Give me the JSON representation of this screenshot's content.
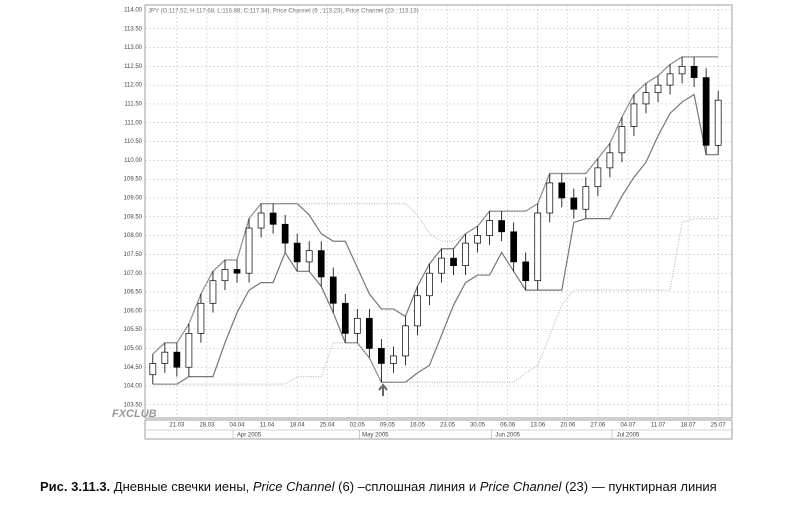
{
  "chart_data": {
    "type": "candlestick",
    "info": "JPY (O:117.52, H:117.68, L:116.88, C:117.34), Price Channel (6 ; 113.23), Price Channel (23 ; 113.13)",
    "x": [
      0,
      2,
      4,
      6,
      8,
      10,
      12,
      14,
      16,
      18,
      20,
      22,
      24,
      26,
      28,
      30,
      32,
      34,
      36,
      38,
      40,
      42,
      44,
      46,
      48,
      50,
      52,
      54,
      56,
      58,
      60,
      62,
      64,
      66,
      68,
      70,
      72,
      74,
      76,
      78,
      80,
      82,
      84,
      86,
      88,
      90,
      92,
      94
    ],
    "open": [
      104.3,
      104.6,
      104.9,
      104.5,
      105.4,
      106.2,
      106.8,
      107.1,
      107.0,
      108.2,
      108.6,
      108.3,
      107.8,
      107.3,
      107.6,
      106.9,
      106.2,
      105.4,
      105.8,
      105.0,
      104.6,
      104.8,
      105.6,
      106.4,
      107.0,
      107.4,
      107.2,
      107.8,
      108.0,
      108.4,
      108.1,
      107.3,
      106.8,
      108.6,
      109.4,
      109.0,
      108.7,
      109.3,
      109.8,
      110.2,
      110.9,
      111.5,
      111.8,
      112.0,
      112.3,
      112.5,
      112.2,
      110.4
    ],
    "high": [
      104.85,
      105.15,
      105.15,
      105.65,
      106.45,
      107.05,
      107.35,
      107.35,
      108.45,
      108.85,
      108.85,
      108.55,
      108.05,
      107.85,
      107.85,
      107.15,
      106.45,
      106.05,
      106.05,
      105.25,
      105.05,
      105.85,
      106.65,
      107.25,
      107.65,
      107.65,
      108.05,
      108.25,
      108.65,
      108.65,
      108.35,
      107.55,
      108.85,
      109.65,
      109.65,
      109.25,
      109.55,
      110.05,
      110.45,
      111.15,
      111.75,
      112.05,
      112.25,
      112.55,
      112.75,
      112.75,
      112.45,
      111.85
    ],
    "low": [
      104.05,
      104.35,
      104.25,
      104.25,
      105.15,
      105.95,
      106.55,
      106.75,
      106.75,
      107.95,
      108.05,
      107.55,
      107.05,
      107.05,
      106.65,
      105.95,
      105.15,
      105.15,
      104.75,
      104.1,
      104.35,
      104.55,
      105.35,
      106.15,
      106.75,
      106.95,
      106.95,
      107.55,
      107.75,
      107.85,
      107.05,
      106.55,
      106.55,
      108.35,
      108.75,
      108.45,
      108.45,
      109.05,
      109.55,
      109.95,
      110.65,
      111.25,
      111.55,
      111.75,
      112.05,
      111.95,
      110.15,
      110.15
    ],
    "close": [
      104.6,
      104.9,
      104.5,
      105.4,
      106.2,
      106.8,
      107.1,
      107.0,
      108.2,
      108.6,
      108.3,
      107.8,
      107.3,
      107.6,
      106.9,
      106.2,
      105.4,
      105.8,
      105.0,
      104.6,
      104.8,
      105.6,
      106.4,
      107.0,
      107.4,
      107.2,
      107.8,
      108.0,
      108.4,
      108.1,
      107.3,
      106.8,
      108.6,
      109.4,
      109.0,
      108.7,
      109.3,
      109.8,
      110.2,
      110.9,
      111.5,
      111.8,
      112.0,
      112.3,
      112.5,
      112.2,
      110.4,
      111.6
    ],
    "channels": [
      {
        "style": "solid",
        "color": "#777777",
        "upper": [
          104.85,
          105.15,
          105.15,
          105.65,
          106.45,
          107.05,
          107.35,
          107.35,
          108.45,
          108.85,
          108.85,
          108.85,
          108.85,
          108.55,
          108.05,
          107.85,
          107.85,
          107.15,
          106.45,
          106.05,
          106.05,
          105.85,
          106.65,
          107.25,
          107.65,
          107.65,
          108.05,
          108.25,
          108.65,
          108.65,
          108.65,
          108.65,
          108.85,
          109.65,
          109.65,
          109.65,
          109.65,
          110.05,
          110.45,
          111.15,
          111.75,
          112.05,
          112.25,
          112.55,
          112.75,
          112.75,
          112.75,
          112.75
        ],
        "lower": [
          104.05,
          104.05,
          104.05,
          104.25,
          104.25,
          104.25,
          105.15,
          105.95,
          106.55,
          106.75,
          106.75,
          107.55,
          107.05,
          107.05,
          106.65,
          105.95,
          105.15,
          105.15,
          104.75,
          104.1,
          104.1,
          104.1,
          104.35,
          104.55,
          105.35,
          106.15,
          106.75,
          106.95,
          106.95,
          107.55,
          107.05,
          106.55,
          106.55,
          106.55,
          106.55,
          108.35,
          108.45,
          108.45,
          108.45,
          109.05,
          109.55,
          109.95,
          110.65,
          111.25,
          111.55,
          111.75,
          110.15,
          110.15
        ]
      },
      {
        "style": "dotted",
        "color": "#bbbbbb",
        "upper": [
          104.85,
          105.15,
          105.15,
          105.65,
          106.45,
          107.05,
          107.35,
          107.35,
          108.45,
          108.85,
          108.85,
          108.85,
          108.85,
          108.85,
          108.85,
          108.85,
          108.85,
          108.85,
          108.85,
          108.85,
          108.85,
          108.85,
          108.55,
          108.05,
          107.85,
          107.85,
          108.05,
          108.25,
          108.65,
          108.65,
          108.65,
          108.65,
          108.85,
          109.65,
          109.65,
          109.65,
          109.65,
          110.05,
          110.45,
          111.15,
          111.75,
          112.05,
          112.25,
          112.55,
          112.75,
          112.75,
          112.75,
          112.75
        ],
        "lower": [
          104.05,
          104.05,
          104.05,
          104.05,
          104.05,
          104.05,
          104.05,
          104.05,
          104.05,
          104.05,
          104.05,
          104.05,
          104.25,
          104.25,
          104.25,
          105.15,
          105.15,
          105.15,
          104.75,
          104.1,
          104.1,
          104.1,
          104.1,
          104.1,
          104.1,
          104.1,
          104.1,
          104.1,
          104.1,
          104.1,
          104.1,
          104.35,
          104.55,
          105.35,
          106.15,
          106.55,
          106.55,
          106.55,
          106.55,
          106.55,
          106.55,
          106.55,
          106.55,
          106.55,
          108.35,
          108.45,
          108.45,
          108.45
        ]
      }
    ],
    "up_color": "#ffffff",
    "down_color": "#000000",
    "xlim": [
      -1.3,
      96.3
    ],
    "xticks": [
      {
        "value": 4,
        "label": "21.03"
      },
      {
        "value": 9,
        "label": "28.03"
      },
      {
        "value": 14,
        "label": "04.04"
      },
      {
        "value": 19,
        "label": "11.04"
      },
      {
        "value": 24,
        "label": "18.04"
      },
      {
        "value": 29,
        "label": "25.04"
      },
      {
        "value": 34,
        "label": "02.05"
      },
      {
        "value": 39,
        "label": "09.05"
      },
      {
        "value": 44,
        "label": "16.05"
      },
      {
        "value": 49,
        "label": "23.05"
      },
      {
        "value": 54,
        "label": "30.05"
      },
      {
        "value": 59,
        "label": "06.06"
      },
      {
        "value": 64,
        "label": "13.06"
      },
      {
        "value": 69,
        "label": "20.06"
      },
      {
        "value": 74,
        "label": "27.06"
      },
      {
        "value": 79,
        "label": "04.07"
      },
      {
        "value": 84,
        "label": "11.07"
      },
      {
        "value": 89,
        "label": "18.07"
      },
      {
        "value": 94,
        "label": "25.07"
      }
    ],
    "month_ticks": [
      {
        "value": 16,
        "label": "Apr 2005"
      },
      {
        "value": 37,
        "label": "May 2005"
      },
      {
        "value": 59,
        "label": "Jun 2005"
      },
      {
        "value": 79,
        "label": "Jul 2005"
      }
    ],
    "ylim": [
      103.15,
      114.13
    ],
    "yticks": [
      {
        "value": 103.5,
        "label": "103.50"
      },
      {
        "value": 104,
        "label": "104.00"
      },
      {
        "value": 104.5,
        "label": "104.50"
      },
      {
        "value": 105,
        "label": "105.00"
      },
      {
        "value": 105.5,
        "label": "105.50"
      },
      {
        "value": 106,
        "label": "106.00"
      },
      {
        "value": 106.5,
        "label": "106.50"
      },
      {
        "value": 107,
        "label": "107.00"
      },
      {
        "value": 107.5,
        "label": "107.50"
      },
      {
        "value": 108,
        "label": "108.00"
      },
      {
        "value": 108.5,
        "label": "108.50"
      },
      {
        "value": 109,
        "label": "109.00"
      },
      {
        "value": 109.5,
        "label": "109.50"
      },
      {
        "value": 110,
        "label": "110.00"
      },
      {
        "value": 110.5,
        "label": "110.50"
      },
      {
        "value": 111,
        "label": "111.00"
      },
      {
        "value": 111.5,
        "label": "111.50"
      },
      {
        "value": 112,
        "label": "112.00"
      },
      {
        "value": 112.5,
        "label": "112.50"
      },
      {
        "value": 113,
        "label": "113.00"
      },
      {
        "value": 113.5,
        "label": "113.50"
      },
      {
        "value": 114,
        "label": "114.00"
      }
    ],
    "grid": true
  },
  "logo": "FXCLUB",
  "caption": {
    "label": "Рис. 3.11.3.",
    "text1": " Дневные свечки иены, ",
    "pc6": "Price Channel",
    "text2": " (6) –сплошная линия и ",
    "pc23": "Price Channel",
    "text3": " (23) — пунктирная линия"
  }
}
